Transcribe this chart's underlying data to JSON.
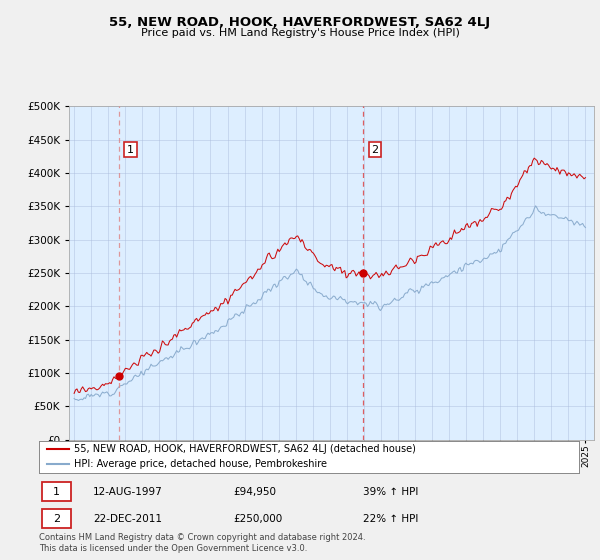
{
  "title": "55, NEW ROAD, HOOK, HAVERFORDWEST, SA62 4LJ",
  "subtitle": "Price paid vs. HM Land Registry's House Price Index (HPI)",
  "ylim": [
    0,
    500000
  ],
  "yticks": [
    0,
    50000,
    100000,
    150000,
    200000,
    250000,
    300000,
    350000,
    400000,
    450000,
    500000
  ],
  "sale1_x": 1997.62,
  "sale1_price": 94950,
  "sale2_x": 2011.96,
  "sale2_price": 250000,
  "red_color": "#cc0000",
  "blue_color": "#88aacc",
  "dashed_color1": "#cc8888",
  "dashed_color2": "#cc4444",
  "plot_bg_color": "#ddeeff",
  "bg_color": "#f0f0f0",
  "legend_line1": "55, NEW ROAD, HOOK, HAVERFORDWEST, SA62 4LJ (detached house)",
  "legend_line2": "HPI: Average price, detached house, Pembrokeshire",
  "annotation1_date": "12-AUG-1997",
  "annotation1_price": "£94,950",
  "annotation1_hpi": "39% ↑ HPI",
  "annotation2_date": "22-DEC-2011",
  "annotation2_price": "£250,000",
  "annotation2_hpi": "22% ↑ HPI",
  "footer": "Contains HM Land Registry data © Crown copyright and database right 2024.\nThis data is licensed under the Open Government Licence v3.0."
}
